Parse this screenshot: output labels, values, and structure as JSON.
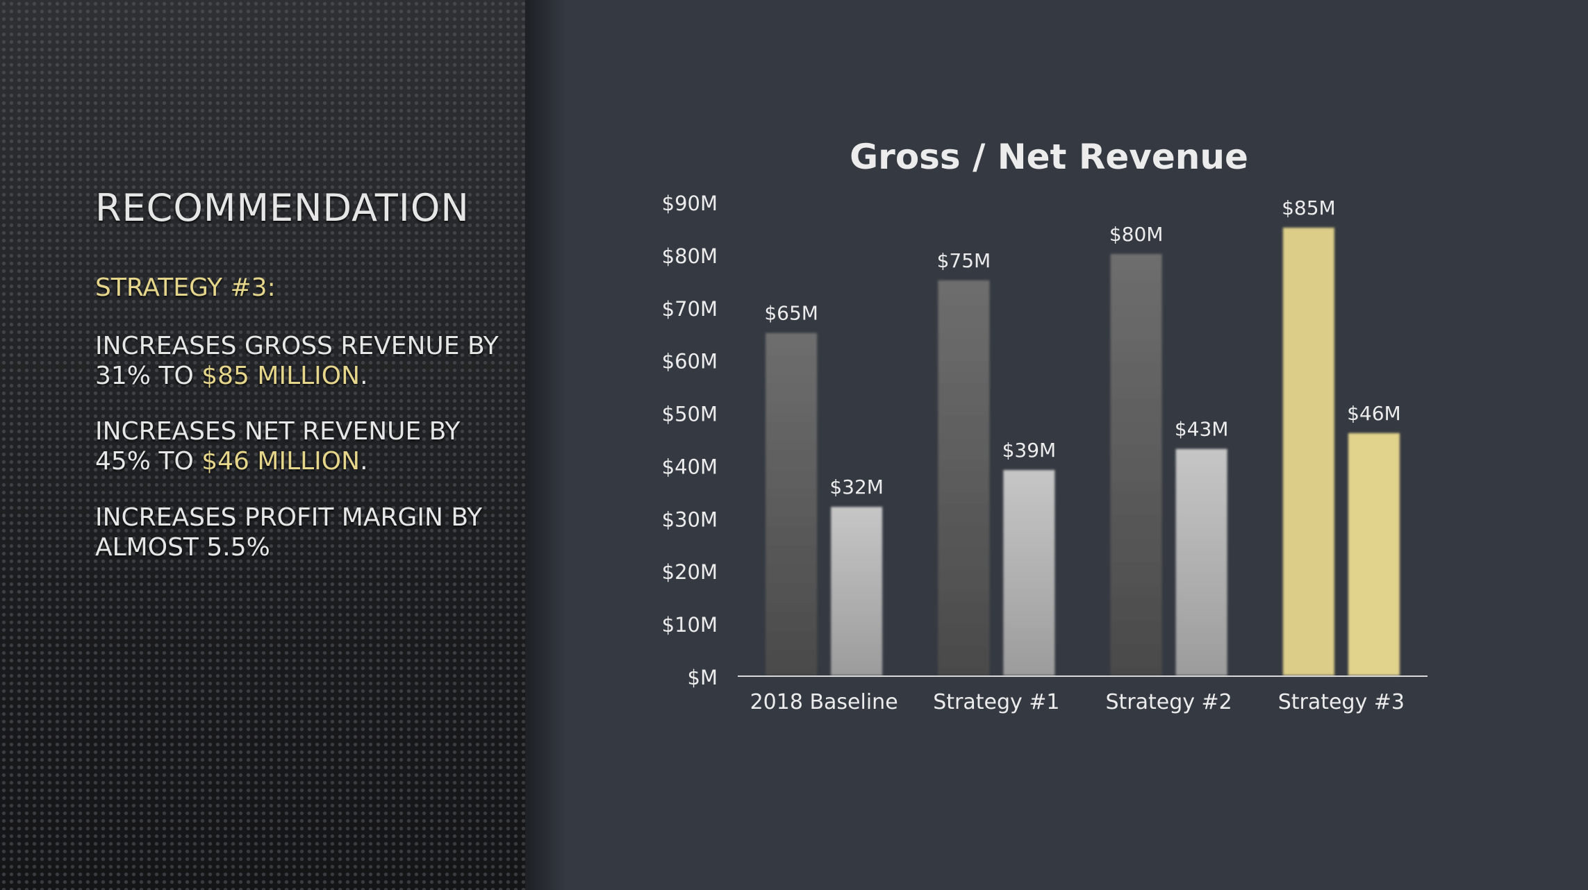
{
  "slide": {
    "title": "RECOMMENDATION",
    "subheading": "STRATEGY #3:",
    "bullets": [
      {
        "pre": "INCREASES GROSS REVENUE BY 31% TO ",
        "highlight": "$85 MILLION",
        "post": "."
      },
      {
        "pre": "INCREASES NET REVENUE BY 45% TO ",
        "highlight": "$46 MILLION",
        "post": "."
      },
      {
        "pre": "INCREASES PROFIT MARGIN BY ALMOST 5.5%",
        "highlight": "",
        "post": ""
      }
    ]
  },
  "colors": {
    "gross": "#6a6a6a",
    "net": "#bdbdbd",
    "highlight_gross": "#dccd88",
    "highlight_net": "#e2d38c",
    "accent_text": "#e6d68c"
  },
  "chart_data": {
    "type": "bar",
    "title": "Gross / Net Revenue",
    "categories": [
      "2018 Baseline",
      "Strategy #1",
      "Strategy #2",
      "Strategy #3"
    ],
    "series": [
      {
        "values": [
          65,
          75,
          80,
          85
        ],
        "labels": [
          "$65M",
          "$75M",
          "$80M",
          "$85M"
        ]
      },
      {
        "values": [
          32,
          39,
          43,
          46
        ],
        "labels": [
          "$32M",
          "$39M",
          "$43M",
          "$46M"
        ]
      }
    ],
    "highlight_category": "Strategy #3",
    "ylim": [
      0,
      90
    ],
    "yticks": [
      0,
      10,
      20,
      30,
      40,
      50,
      60,
      70,
      80,
      90
    ],
    "ytick_labels": [
      "$M",
      "$10M",
      "$20M",
      "$30M",
      "$40M",
      "$50M",
      "$60M",
      "$70M",
      "$80M",
      "$90M"
    ],
    "xlabel": "",
    "ylabel": "",
    "grid": false,
    "legend": "none"
  }
}
